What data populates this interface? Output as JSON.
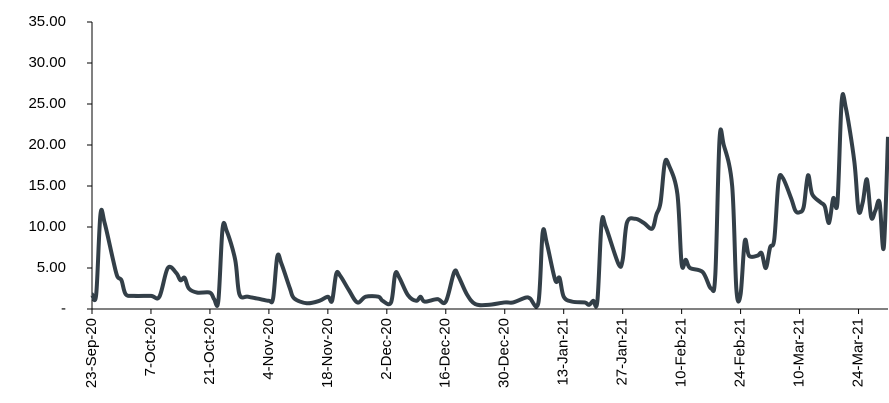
{
  "chart_data": {
    "type": "line",
    "x": [
      "23-Sep-20",
      "24-Sep-20",
      "25-Sep-20",
      "26-Sep-20",
      "28-Sep-20",
      "29-Sep-20",
      "30-Sep-20",
      "1-Oct-20",
      "3-Oct-20",
      "7-Oct-20",
      "9-Oct-20",
      "11-Oct-20",
      "13-Oct-20",
      "14-Oct-20",
      "15-Oct-20",
      "16-Oct-20",
      "18-Oct-20",
      "21-Oct-20",
      "22-Oct-20",
      "23-Oct-20",
      "24-Oct-20",
      "25-Oct-20",
      "27-Oct-20",
      "28-Oct-20",
      "30-Oct-20",
      "2-Nov-20",
      "4-Nov-20",
      "5-Nov-20",
      "6-Nov-20",
      "7-Nov-20",
      "9-Nov-20",
      "10-Nov-20",
      "13-Nov-20",
      "16-Nov-20",
      "18-Nov-20",
      "19-Nov-20",
      "20-Nov-20",
      "21-Nov-20",
      "23-Nov-20",
      "25-Nov-20",
      "27-Nov-20",
      "30-Nov-20",
      "1-Dec-20",
      "3-Dec-20",
      "4-Dec-20",
      "5-Dec-20",
      "7-Dec-20",
      "9-Dec-20",
      "10-Dec-20",
      "11-Dec-20",
      "14-Dec-20",
      "16-Dec-20",
      "18-Dec-20",
      "19-Dec-20",
      "21-Dec-20",
      "23-Dec-20",
      "26-Dec-20",
      "30-Dec-20",
      "1-Jan-21",
      "4-Jan-21",
      "5-Jan-21",
      "7-Jan-21",
      "8-Jan-21",
      "9-Jan-21",
      "11-Jan-21",
      "12-Jan-21",
      "13-Jan-21",
      "15-Jan-21",
      "18-Jan-21",
      "19-Jan-21",
      "20-Jan-21",
      "21-Jan-21",
      "22-Jan-21",
      "23-Jan-21",
      "26-Jan-21",
      "27-Jan-21",
      "28-Jan-21",
      "30-Jan-21",
      "1-Feb-21",
      "3-Feb-21",
      "4-Feb-21",
      "5-Feb-21",
      "6-Feb-21",
      "7-Feb-21",
      "9-Feb-21",
      "10-Feb-21",
      "11-Feb-21",
      "12-Feb-21",
      "15-Feb-21",
      "17-Feb-21",
      "18-Feb-21",
      "19-Feb-21",
      "20-Feb-21",
      "22-Feb-21",
      "23-Feb-21",
      "24-Feb-21",
      "25-Feb-21",
      "26-Feb-21",
      "28-Feb-21",
      "1-Mar-21",
      "2-Mar-21",
      "3-Mar-21",
      "4-Mar-21",
      "5-Mar-21",
      "6-Mar-21",
      "8-Mar-21",
      "9-Mar-21",
      "10-Mar-21",
      "11-Mar-21",
      "12-Mar-21",
      "13-Mar-21",
      "15-Mar-21",
      "16-Mar-21",
      "17-Mar-21",
      "18-Mar-21",
      "19-Mar-21",
      "20-Mar-21",
      "21-Mar-21",
      "23-Mar-21",
      "24-Mar-21",
      "25-Mar-21",
      "26-Mar-21",
      "27-Mar-21",
      "28-Mar-21",
      "29-Mar-21",
      "30-Mar-21",
      "31-Mar-21"
    ],
    "series": [
      {
        "color": "#333f48",
        "values": [
          1.8,
          1.8,
          11.5,
          10.5,
          6,
          4,
          3.5,
          1.8,
          1.6,
          1.6,
          1.5,
          5,
          4.4,
          3.5,
          3.8,
          2.5,
          2,
          2,
          1.2,
          1.0,
          9.8,
          9.5,
          6,
          1.8,
          1.5,
          1.2,
          1.0,
          1.3,
          6.4,
          5.5,
          2.5,
          1.3,
          0.7,
          1.0,
          1.5,
          1.0,
          4.3,
          4.0,
          2.3,
          0.8,
          1.5,
          1.5,
          1.0,
          0.8,
          4.3,
          3.8,
          1.7,
          1.0,
          1.5,
          0.9,
          1.2,
          0.9,
          4.5,
          4.0,
          1.8,
          0.6,
          0.5,
          0.8,
          0.8,
          1.4,
          1.3,
          0.8,
          9.3,
          8.0,
          3.5,
          3.8,
          1.5,
          0.9,
          0.8,
          0.5,
          1.0,
          1.0,
          10.5,
          10,
          5.5,
          6,
          10.5,
          11,
          10.5,
          9.8,
          11.5,
          13,
          17.8,
          17.5,
          14,
          5.5,
          6,
          5,
          4.5,
          2.5,
          4.2,
          20.7,
          20,
          15,
          2.4,
          1.8,
          8.3,
          6.5,
          6.5,
          6.8,
          5,
          7.5,
          8.5,
          15.5,
          16,
          13.5,
          12,
          11.8,
          12.5,
          16.3,
          14,
          13,
          12.5,
          10.5,
          13.5,
          13,
          25.3,
          24.5,
          18,
          12,
          13,
          15.8,
          11.2,
          12,
          13,
          7.5,
          21
        ]
      }
    ],
    "xlim": [
      "23-Sep-20",
      "31-Mar-21"
    ],
    "xticks": [
      "23-Sep-20",
      "7-Oct-20",
      "21-Oct-20",
      "4-Nov-20",
      "18-Nov-20",
      "2-Dec-20",
      "16-Dec-20",
      "30-Dec-20",
      "13-Jan-21",
      "27-Jan-21",
      "10-Feb-21",
      "24-Feb-21",
      "10-Mar-21",
      "24-Mar-21"
    ],
    "ylim": [
      0,
      35
    ],
    "yticks": [
      {
        "value": 0,
        "label": "-"
      },
      {
        "value": 5,
        "label": "5.00"
      },
      {
        "value": 10,
        "label": "10.00"
      },
      {
        "value": 15,
        "label": "15.00"
      },
      {
        "value": 20,
        "label": "20.00"
      },
      {
        "value": 25,
        "label": "25.00"
      },
      {
        "value": 30,
        "label": "30.00"
      },
      {
        "value": 35,
        "label": "35.00"
      }
    ],
    "grid": false
  }
}
